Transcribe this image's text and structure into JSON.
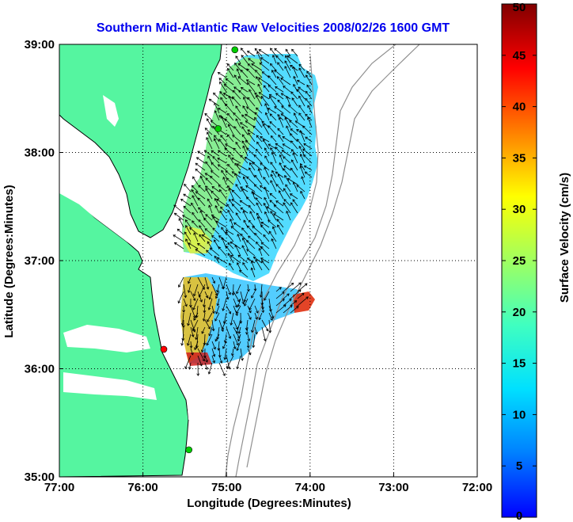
{
  "title": "Southern Mid-Atlantic Raw Velocities 2008/02/26 1600 GMT",
  "colors": {
    "title": "#0000ee",
    "land": "#55f5a0",
    "grid": "#000000",
    "bathymetry": "#909090",
    "coastline": "#000000"
  },
  "map": {
    "xlabel": "Longitude (Degrees:Minutes)",
    "ylabel": "Latitude (Degrees:Minutes)",
    "lon_range": [
      -77,
      -72
    ],
    "lat_range": [
      35,
      39
    ],
    "x_ticks": [
      {
        "value": -77,
        "label": "77:00"
      },
      {
        "value": -76,
        "label": "76:00"
      },
      {
        "value": -75,
        "label": "75:00"
      },
      {
        "value": -74,
        "label": "74:00"
      },
      {
        "value": -73,
        "label": "73:00"
      },
      {
        "value": -72,
        "label": "72:00"
      }
    ],
    "y_ticks": [
      {
        "value": 35,
        "label": "35:00"
      },
      {
        "value": 36,
        "label": "36:00"
      },
      {
        "value": 37,
        "label": "37:00"
      },
      {
        "value": 38,
        "label": "38:00"
      },
      {
        "value": 39,
        "label": "39:00"
      }
    ],
    "grid": true,
    "stations": [
      {
        "lon": -74.9,
        "lat": 38.95,
        "color": "#00cc00"
      },
      {
        "lon": -75.1,
        "lat": 38.22,
        "color": "#00cc00"
      },
      {
        "lon": -75.75,
        "lat": 36.18,
        "color": "#ff0000"
      },
      {
        "lon": -75.45,
        "lat": 35.25,
        "color": "#00cc00"
      }
    ]
  },
  "colorbar": {
    "label": "Surface Velocity (cm/s)",
    "range": [
      0,
      50
    ],
    "ticks": [
      {
        "value": 0,
        "label": "0"
      },
      {
        "value": 5,
        "label": "5"
      },
      {
        "value": 10,
        "label": "10"
      },
      {
        "value": 15,
        "label": "15"
      },
      {
        "value": 20,
        "label": "20"
      },
      {
        "value": 25,
        "label": "25"
      },
      {
        "value": 30,
        "label": "30"
      },
      {
        "value": 35,
        "label": "35"
      },
      {
        "value": 40,
        "label": "40"
      },
      {
        "value": 45,
        "label": "45"
      },
      {
        "value": 50,
        "label": "50"
      }
    ],
    "colormap": "jet"
  }
}
